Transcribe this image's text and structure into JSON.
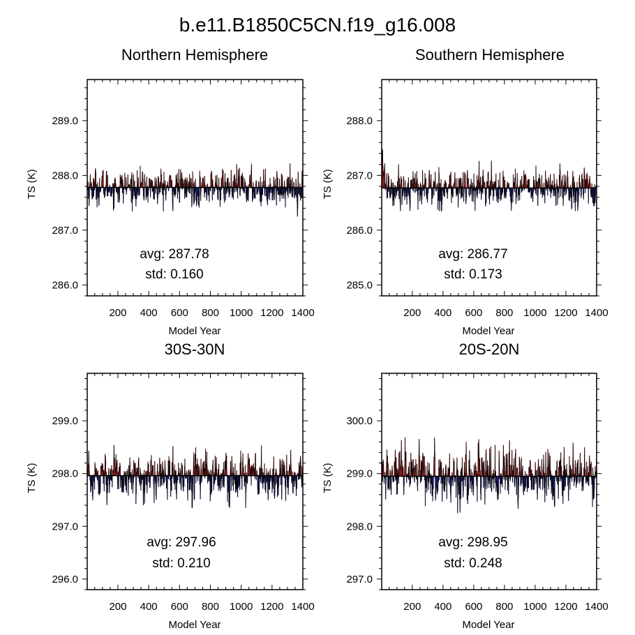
{
  "title": "b.e11.B1850C5CN.f19_g16.008",
  "colors": {
    "above": "#8b1a1a",
    "below": "#1a1a66",
    "frame": "#000000"
  },
  "chart_data": [
    {
      "type": "area",
      "title": "Northern Hemisphere",
      "xlabel": "Model Year",
      "ylabel": "TS (K)",
      "xlim": [
        1,
        1400
      ],
      "ylim": [
        285.8,
        289.75
      ],
      "xticks": [
        200,
        400,
        600,
        800,
        1000,
        1200,
        1400
      ],
      "xtick_labels": [
        "200",
        "400",
        "600",
        "800",
        "1000",
        "1200",
        "1400"
      ],
      "yticks": [
        286.0,
        287.0,
        288.0,
        289.0
      ],
      "ytick_labels": [
        "286.0",
        "287.0",
        "288.0",
        "289.0"
      ],
      "reference": 287.78,
      "std": 0.16,
      "series_range": [
        287.25,
        288.3
      ],
      "avg_text": "avg: 287.78",
      "std_text": "std:  0.160"
    },
    {
      "type": "area",
      "title": "Southern Hemisphere",
      "xlabel": "Model Year",
      "ylabel": "TS (K)",
      "xlim": [
        1,
        1400
      ],
      "ylim": [
        284.8,
        288.75
      ],
      "xticks": [
        200,
        400,
        600,
        800,
        1000,
        1200,
        1400
      ],
      "xtick_labels": [
        "200",
        "400",
        "600",
        "800",
        "1000",
        "1200",
        "1400"
      ],
      "yticks": [
        285.0,
        286.0,
        287.0,
        288.0
      ],
      "ytick_labels": [
        "285.0",
        "286.0",
        "287.0",
        "288.0"
      ],
      "reference": 286.77,
      "std": 0.173,
      "series_range": [
        286.35,
        287.5
      ],
      "avg_text": "avg: 286.77",
      "std_text": "std:  0.173"
    },
    {
      "type": "area",
      "title": "30S-30N",
      "xlabel": "Model Year",
      "ylabel": "TS (K)",
      "xlim": [
        1,
        1400
      ],
      "ylim": [
        295.8,
        299.9
      ],
      "xticks": [
        200,
        400,
        600,
        800,
        1000,
        1200,
        1400
      ],
      "xtick_labels": [
        "200",
        "400",
        "600",
        "800",
        "1000",
        "1200",
        "1400"
      ],
      "yticks": [
        296.0,
        297.0,
        298.0,
        299.0
      ],
      "ytick_labels": [
        "296.0",
        "297.0",
        "298.0",
        "299.0"
      ],
      "reference": 297.96,
      "std": 0.21,
      "series_range": [
        297.35,
        298.6
      ],
      "avg_text": "avg: 297.96",
      "std_text": "std:  0.210"
    },
    {
      "type": "area",
      "title": "20S-20N",
      "xlabel": "Model Year",
      "ylabel": "TS (K)",
      "xlim": [
        1,
        1400
      ],
      "ylim": [
        296.8,
        300.9
      ],
      "xticks": [
        200,
        400,
        600,
        800,
        1000,
        1200,
        1400
      ],
      "xtick_labels": [
        "200",
        "400",
        "600",
        "800",
        "1000",
        "1200",
        "1400"
      ],
      "yticks": [
        297.0,
        298.0,
        299.0,
        300.0
      ],
      "ytick_labels": [
        "297.0",
        "298.0",
        "299.0",
        "300.0"
      ],
      "reference": 298.95,
      "std": 0.248,
      "series_range": [
        298.25,
        299.7
      ],
      "avg_text": "avg: 298.95",
      "std_text": "std:  0.248"
    }
  ]
}
